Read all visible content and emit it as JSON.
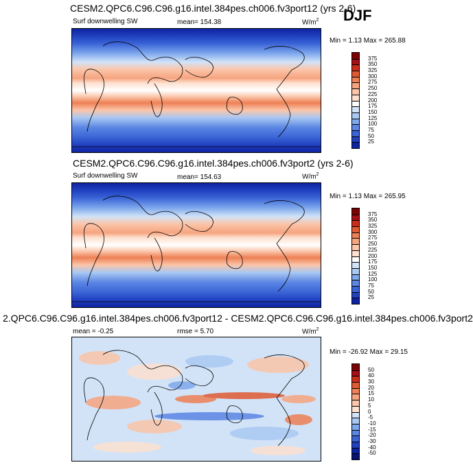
{
  "season": "DJF",
  "panels": [
    {
      "title": "CESM2.QPC6.C96.C96.g16.intel.384pes.ch006.fv3port12 (yrs 2-6)",
      "left_label": "Surf downwelling SW",
      "stat_label": "mean= 154.38",
      "units": "W/m",
      "units_exp": "2",
      "minmax": "Min =  1.13 Max = 265.88",
      "colorbar": {
        "ticks": [
          "375",
          "350",
          "325",
          "300",
          "275",
          "250",
          "225",
          "200",
          "175",
          "150",
          "125",
          "100",
          "75",
          "50",
          "25"
        ],
        "colors": [
          "#7a0403",
          "#a50f15",
          "#cb2d1b",
          "#e05a33",
          "#ee8055",
          "#f6a47f",
          "#fbc5a9",
          "#fde0cf",
          "#ffffff",
          "#d2e3f8",
          "#a9c8f2",
          "#7ea8ec",
          "#5b86e3",
          "#3a64d6",
          "#2141c0",
          "#0e23a1"
        ]
      }
    },
    {
      "title": "CESM2.QPC6.C96.C96.g16.intel.384pes.ch006.fv3port2 (yrs 2-6)",
      "left_label": "Surf downwelling SW",
      "stat_label": "mean= 154.63",
      "units": "W/m",
      "units_exp": "2",
      "minmax": "Min =  1.13 Max = 265.95",
      "colorbar": {
        "ticks": [
          "375",
          "350",
          "325",
          "300",
          "275",
          "250",
          "225",
          "200",
          "175",
          "150",
          "125",
          "100",
          "75",
          "50",
          "25"
        ],
        "colors": [
          "#7a0403",
          "#a50f15",
          "#cb2d1b",
          "#e05a33",
          "#ee8055",
          "#f6a47f",
          "#fbc5a9",
          "#fde0cf",
          "#ffffff",
          "#d2e3f8",
          "#a9c8f2",
          "#7ea8ec",
          "#5b86e3",
          "#3a64d6",
          "#2141c0",
          "#0e23a1"
        ]
      }
    },
    {
      "title": "2.QPC6.C96.C96.g16.intel.384pes.ch006.fv3port12 - CESM2.QPC6.C96.C96.g16.intel.384pes.ch006.fv3port2",
      "left_label": "mean =  -0.25",
      "stat_label": "rmse =  5.70",
      "units": "W/m",
      "units_exp": "2",
      "minmax": "Min = -26.92 Max =  29.15",
      "colorbar": {
        "ticks": [
          "50",
          "40",
          "30",
          "20",
          "15",
          "10",
          "5",
          "0",
          "-5",
          "-10",
          "-15",
          "-20",
          "-30",
          "-40",
          "-50"
        ],
        "colors": [
          "#7a0403",
          "#a50f15",
          "#cb2d1b",
          "#e05a33",
          "#ee8055",
          "#f6a47f",
          "#fbc5a9",
          "#fde0cf",
          "#d2e3f8",
          "#a9c8f2",
          "#7ea8ec",
          "#5b86e3",
          "#3a64d6",
          "#2141c0",
          "#0e23a1",
          "#07146e"
        ]
      }
    }
  ]
}
